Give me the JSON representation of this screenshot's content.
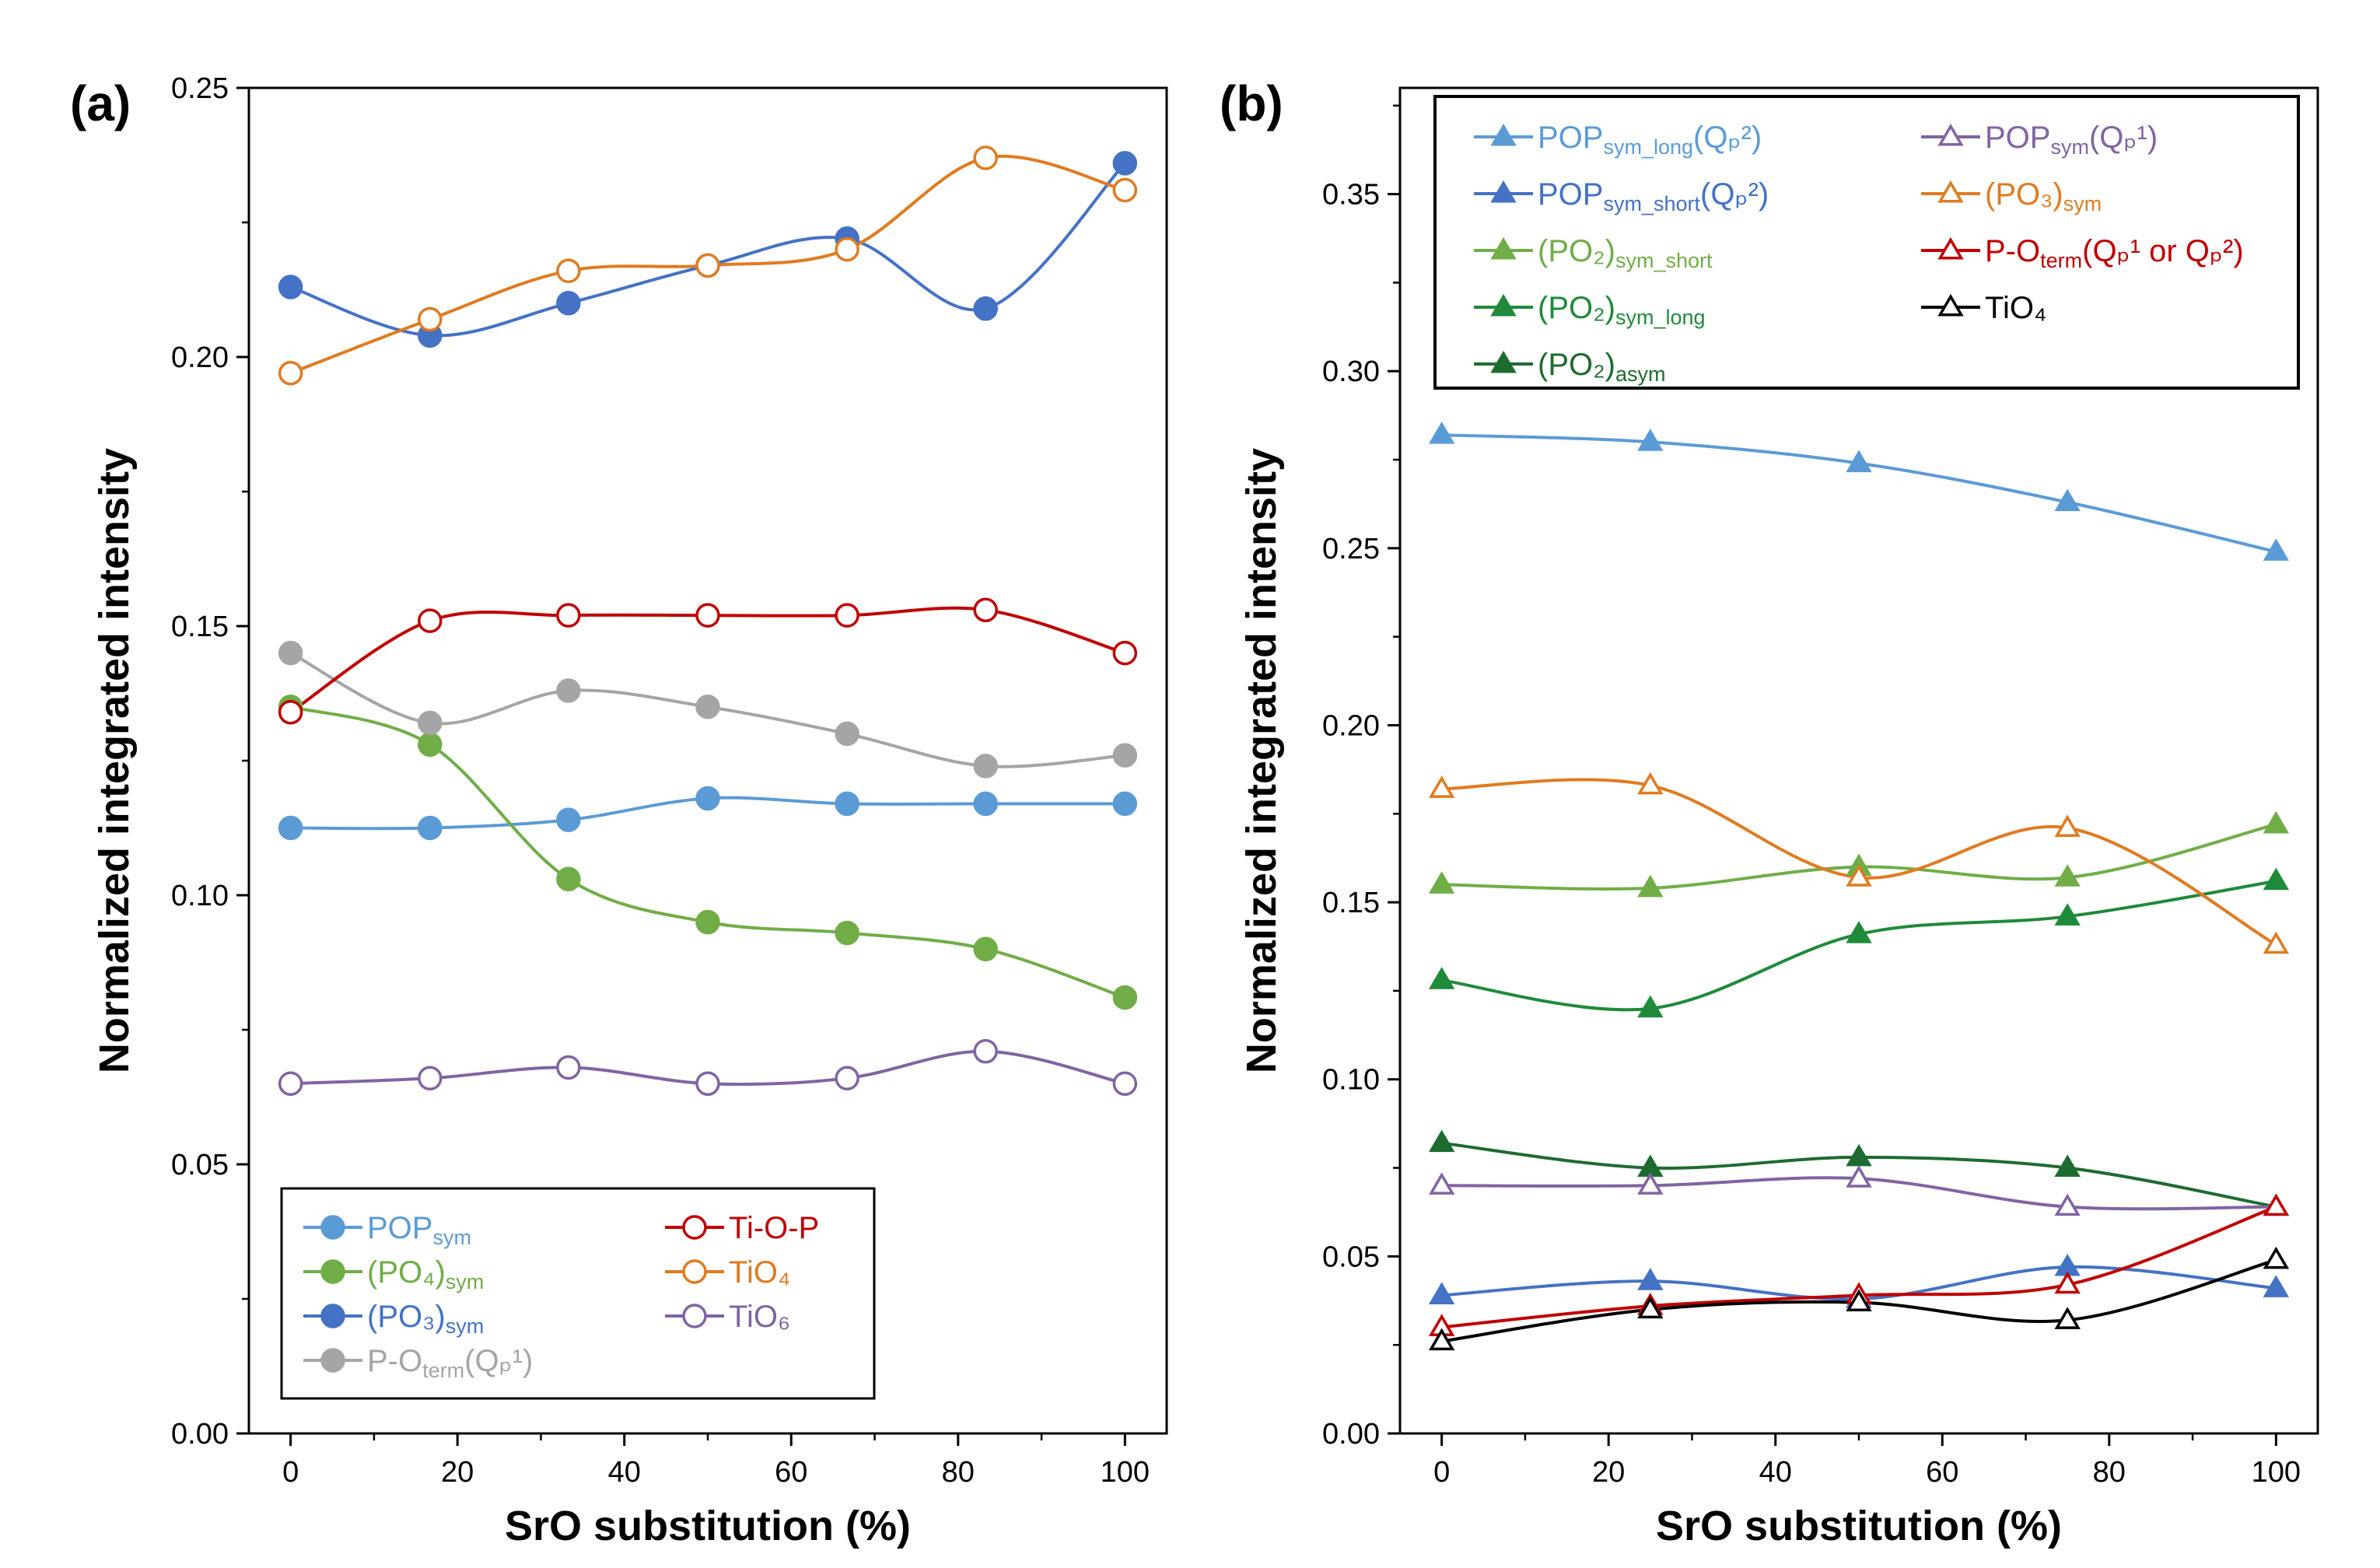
{
  "figure": {
    "colors": {
      "light_blue": "#5B9BD5",
      "blue": "#4472C4",
      "green": "#70AD47",
      "mid_green": "#1F8A3A",
      "dark_green": "#1E6B30",
      "gray": "#A5A5A5",
      "orange": "#E07B20",
      "red": "#C00000",
      "purple": "#8064A2",
      "black": "#000000"
    }
  },
  "chart_data": [
    {
      "panel_label": "(a)",
      "type": "line",
      "xlabel": "SrO substitution (%)",
      "ylabel": "Normalized integrated intensity",
      "xlim": [
        -5,
        105
      ],
      "ylim": [
        0.0,
        0.25
      ],
      "xticks": [
        "0",
        "20",
        "40",
        "60",
        "80",
        "100"
      ],
      "yticks": [
        "0.00",
        "0.05",
        "0.10",
        "0.15",
        "0.20",
        "0.25"
      ],
      "x": [
        0,
        16.7,
        33.3,
        50,
        66.7,
        83.3,
        100
      ],
      "legend_position": "bottom-left",
      "series": [
        {
          "key": "pop_sym",
          "name": "POP",
          "sub": "sym",
          "tail": "",
          "color": "#5B9BD5",
          "marker": "circle",
          "filled": true,
          "values": [
            0.1125,
            0.1125,
            0.114,
            0.118,
            0.117,
            0.117,
            0.117
          ]
        },
        {
          "key": "po4_sym",
          "name": "(PO₄)",
          "sub": "sym",
          "tail": "",
          "color": "#70AD47",
          "marker": "circle",
          "filled": true,
          "values": [
            0.135,
            0.128,
            0.103,
            0.095,
            0.093,
            0.09,
            0.081
          ]
        },
        {
          "key": "po3_sym",
          "name": "(PO₃)",
          "sub": "sym",
          "tail": "",
          "color": "#4472C4",
          "marker": "circle",
          "filled": true,
          "values": [
            0.213,
            0.204,
            0.21,
            0.217,
            0.222,
            0.209,
            0.236
          ]
        },
        {
          "key": "po_term_qp1",
          "name": "P-O",
          "sub": "term",
          "tail": "(Qₚ¹)",
          "color": "#A5A5A5",
          "marker": "circle",
          "filled": true,
          "values": [
            0.145,
            0.132,
            0.138,
            0.135,
            0.13,
            0.124,
            0.126
          ]
        },
        {
          "key": "ti_o_p",
          "name": "Ti-O-P",
          "sub": "",
          "tail": "",
          "color": "#C00000",
          "marker": "circle",
          "filled": false,
          "values": [
            0.134,
            0.151,
            0.152,
            0.152,
            0.152,
            0.153,
            0.145
          ]
        },
        {
          "key": "tio4",
          "name": "TiO₄",
          "sub": "",
          "tail": "",
          "color": "#E07B20",
          "marker": "circle",
          "filled": false,
          "values": [
            0.197,
            0.207,
            0.216,
            0.217,
            0.22,
            0.237,
            0.231
          ]
        },
        {
          "key": "tio6",
          "name": "TiO₆",
          "sub": "",
          "tail": "",
          "color": "#8064A2",
          "marker": "circle",
          "filled": false,
          "values": [
            0.065,
            0.066,
            0.068,
            0.065,
            0.066,
            0.071,
            0.065
          ]
        }
      ]
    },
    {
      "panel_label": "(b)",
      "type": "line",
      "xlabel": "SrO substitution (%)",
      "ylabel": "Normalized integrated intensity",
      "xlim": [
        -5,
        105
      ],
      "ylim": [
        0.0,
        0.38
      ],
      "xticks": [
        "0",
        "20",
        "40",
        "60",
        "80",
        "100"
      ],
      "yticks": [
        "0.00",
        "0.05",
        "0.10",
        "0.15",
        "0.20",
        "0.25",
        "0.30",
        "0.35"
      ],
      "x": [
        0,
        25,
        50,
        75,
        100
      ],
      "legend_position": "top",
      "series": [
        {
          "key": "pop_sym_long",
          "name": "POP",
          "sub": "sym_long",
          "tail": "(Qₚ²)",
          "color": "#5B9BD5",
          "marker": "triangle",
          "filled": true,
          "values": [
            0.282,
            0.28,
            0.274,
            0.263,
            0.249
          ]
        },
        {
          "key": "pop_sym_short",
          "name": "POP",
          "sub": "sym_short",
          "tail": "(Qₚ²)",
          "color": "#4472C4",
          "marker": "triangle",
          "filled": true,
          "values": [
            0.039,
            0.043,
            0.038,
            0.047,
            0.041
          ]
        },
        {
          "key": "po2_sym_short",
          "name": "(PO₂)",
          "sub": "sym_short",
          "tail": "",
          "color": "#70AD47",
          "marker": "triangle",
          "filled": true,
          "values": [
            0.155,
            0.154,
            0.16,
            0.157,
            0.172
          ]
        },
        {
          "key": "po2_sym_long",
          "name": "(PO₂)",
          "sub": "sym_long",
          "tail": "",
          "color": "#1F8A3A",
          "marker": "triangle",
          "filled": true,
          "values": [
            0.128,
            0.12,
            0.141,
            0.146,
            0.156
          ]
        },
        {
          "key": "po2_asym",
          "name": "(PO₂)",
          "sub": "asym",
          "tail": "",
          "color": "#1E6B30",
          "marker": "triangle",
          "filled": true,
          "values": [
            0.082,
            0.075,
            0.078,
            0.075,
            0.064
          ]
        },
        {
          "key": "pop_sym_qp1",
          "name": "POP",
          "sub": "sym",
          "tail": "(Qₚ¹)",
          "color": "#8064A2",
          "marker": "triangle",
          "filled": false,
          "values": [
            0.07,
            0.07,
            0.072,
            0.064,
            0.064
          ]
        },
        {
          "key": "po3_sym_b",
          "name": "(PO₃)",
          "sub": "sym",
          "tail": "",
          "color": "#E07B20",
          "marker": "triangle",
          "filled": false,
          "values": [
            0.182,
            0.183,
            0.157,
            0.171,
            0.138
          ]
        },
        {
          "key": "po_term_b",
          "name": "P-O",
          "sub": "term",
          "tail": "(Qₚ¹ or Qₚ²)",
          "color": "#C00000",
          "marker": "triangle",
          "filled": false,
          "values": [
            0.03,
            0.036,
            0.039,
            0.042,
            0.064
          ]
        },
        {
          "key": "tio4_b",
          "name": "TiO₄",
          "sub": "",
          "tail": "",
          "color": "#000000",
          "marker": "triangle",
          "filled": false,
          "values": [
            0.026,
            0.035,
            0.037,
            0.032,
            0.049
          ]
        }
      ]
    }
  ]
}
